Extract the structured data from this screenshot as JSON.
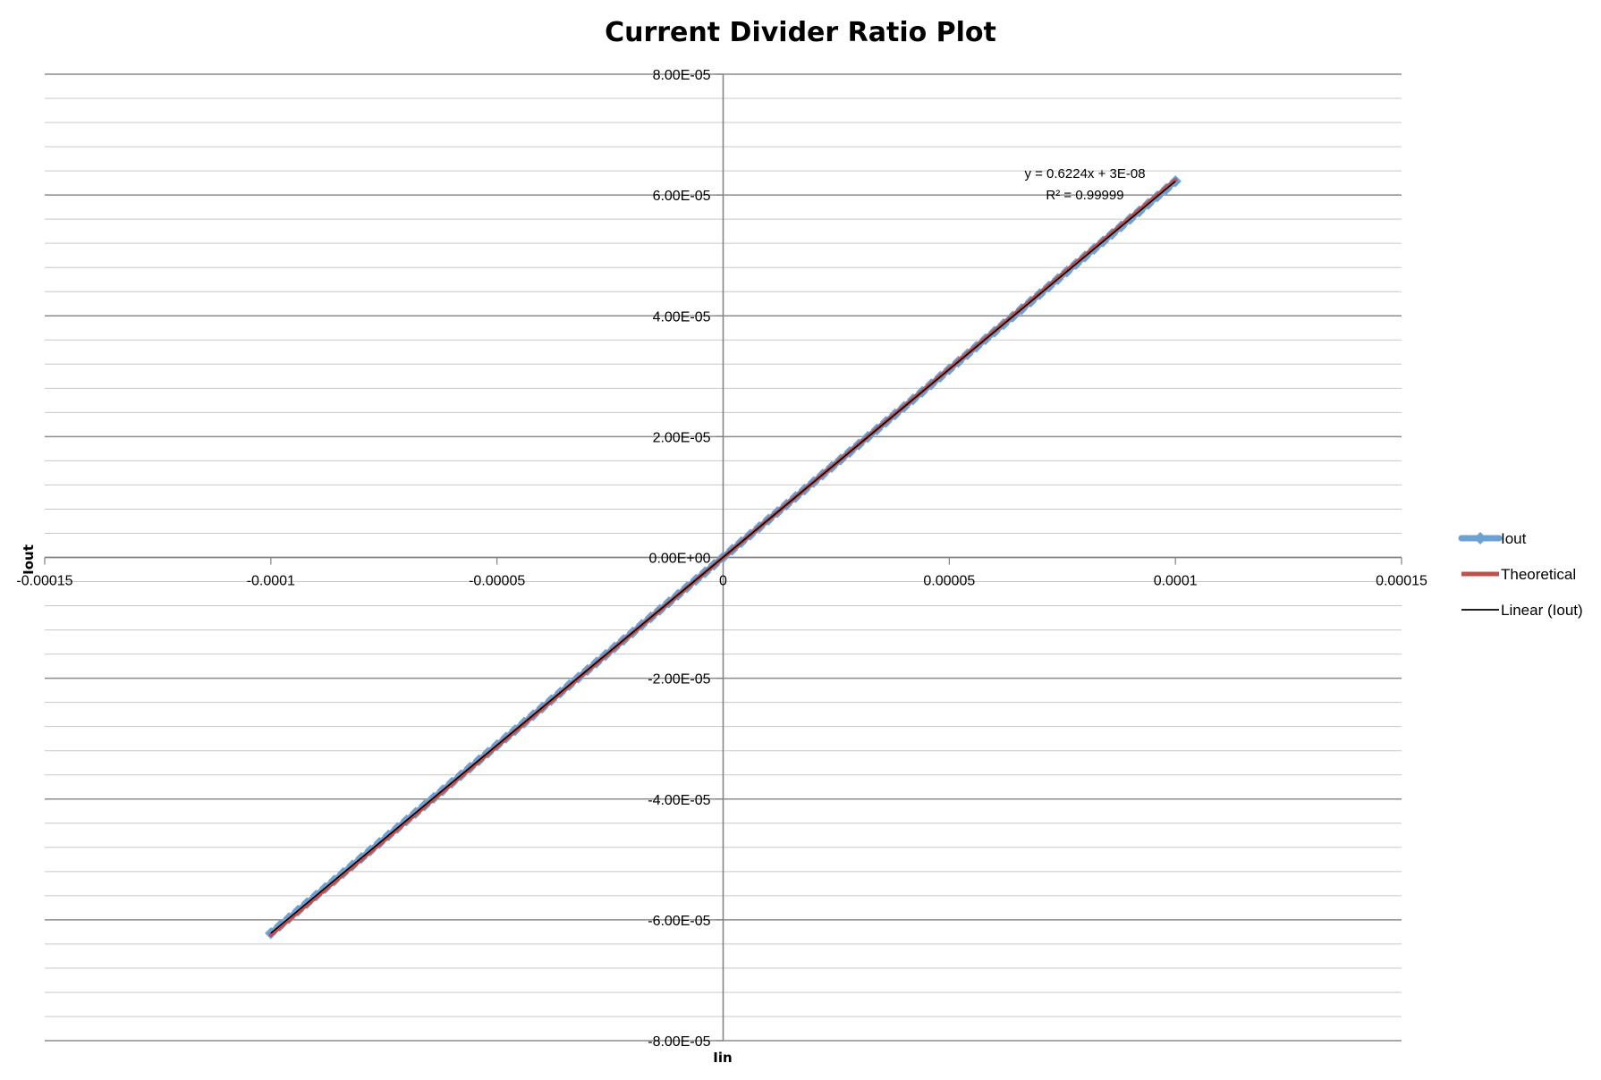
{
  "chart_data": {
    "type": "scatter",
    "title": "Current Divider Ratio Plot",
    "xlabel": "Iin",
    "ylabel": "Iout",
    "xlim": [
      -0.00015,
      0.00015
    ],
    "ylim": [
      -8e-05,
      8e-05
    ],
    "x_ticks": [
      -0.00015,
      -0.0001,
      -5e-05,
      0,
      5e-05,
      0.0001,
      0.00015
    ],
    "x_tick_labels": [
      "-0.00015",
      "-0.0001",
      "-0.00005",
      "0",
      "0.00005",
      "0.0001",
      "0.00015"
    ],
    "y_ticks": [
      8e-05,
      6e-05,
      4e-05,
      2e-05,
      0,
      -2e-05,
      -4e-05,
      -6e-05,
      -8e-05
    ],
    "y_tick_labels": [
      "8.00E-05",
      "6.00E-05",
      "4.00E-05",
      "2.00E-05",
      "0.00E+00",
      "-2.00E-05",
      "-4.00E-05",
      "-6.00E-05",
      "-8.00E-05"
    ],
    "grid": true,
    "minor_grid": true,
    "legend_position": "right",
    "series": [
      {
        "name": "Iout",
        "kind": "line-markers",
        "color": "#6fa0d3",
        "marker": "diamond",
        "x_start": -0.0001,
        "x_end": 0.0001,
        "x_step": 2e-06,
        "slope": 0.6224,
        "intercept": 3e-08
      },
      {
        "name": "Theoretical",
        "kind": "line",
        "color": "#c0504d",
        "x": [
          -0.0001,
          0.0001
        ],
        "y": [
          -6.25e-05,
          6.25e-05
        ]
      },
      {
        "name": "Linear (Iout)",
        "kind": "trendline",
        "color": "#000000",
        "x": [
          -0.0001,
          0.0001
        ],
        "y": [
          -6.221e-05,
          6.227e-05
        ]
      }
    ],
    "trendline_equation": "y = 0.6224x + 3E-08",
    "trendline_r2": "R² = 0.99999"
  }
}
